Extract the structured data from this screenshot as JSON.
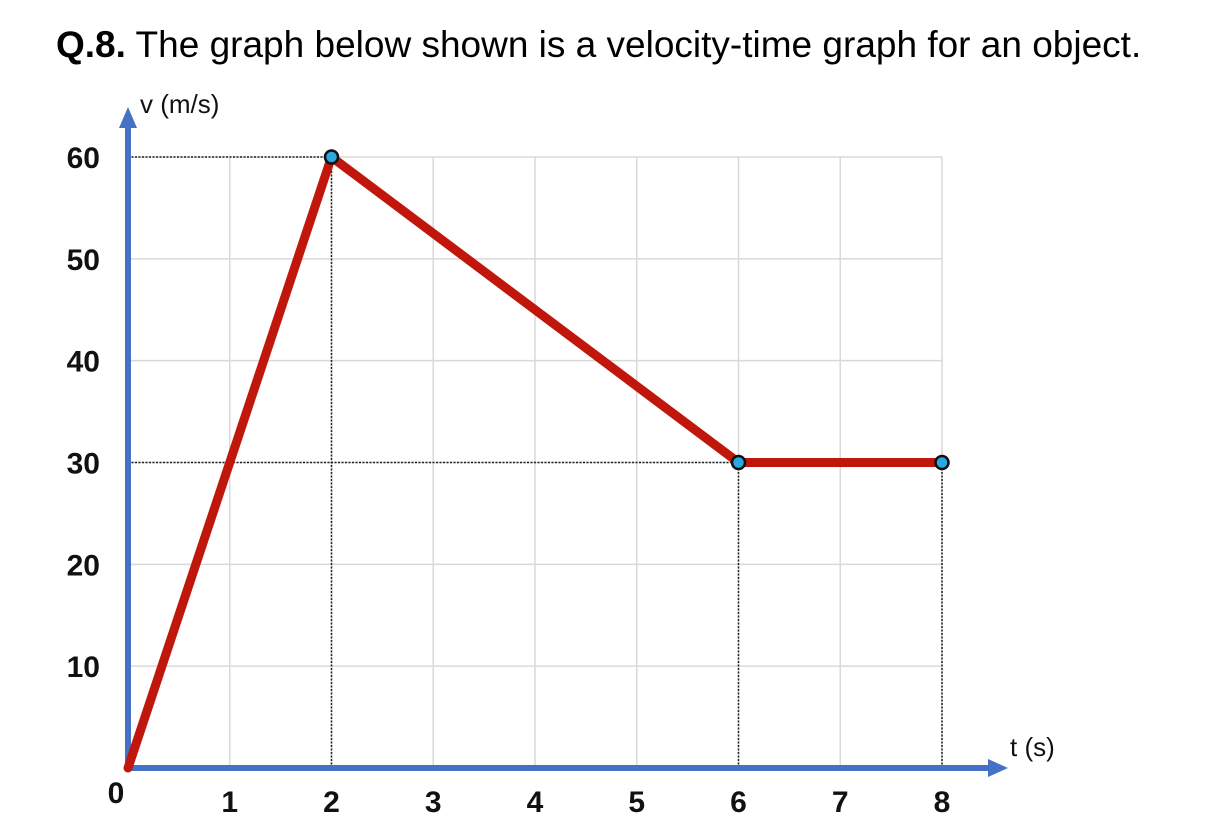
{
  "question": {
    "number": "Q.8.",
    "text": "The graph below shown is a velocity-time graph for an object."
  },
  "chart_data": {
    "type": "line",
    "title": "",
    "xlabel": "t (s)",
    "ylabel": "v (m/s)",
    "xlim": [
      0,
      8
    ],
    "ylim": [
      0,
      60
    ],
    "x_ticks": [
      "1",
      "2",
      "3",
      "4",
      "5",
      "6",
      "7",
      "8"
    ],
    "y_ticks": [
      "60",
      "50",
      "40",
      "30",
      "20",
      "10"
    ],
    "origin_label": "0",
    "grid": true,
    "series": [
      {
        "points": [
          [
            0,
            0
          ],
          [
            2,
            60
          ],
          [
            6,
            30
          ],
          [
            8,
            30
          ]
        ],
        "color": "#c0160c"
      }
    ],
    "marked_points": [
      [
        2,
        60
      ],
      [
        6,
        30
      ],
      [
        8,
        30
      ]
    ],
    "guide_lines": [
      {
        "axis": "horizontal",
        "value": 60,
        "to_x": 2
      },
      {
        "axis": "horizontal",
        "value": 30,
        "to_x": 6
      },
      {
        "axis": "vertical",
        "value": 2,
        "to_y": 60
      },
      {
        "axis": "vertical",
        "value": 6,
        "to_y": 30
      },
      {
        "axis": "vertical",
        "value": 8,
        "to_y": 30
      }
    ],
    "colors": {
      "axis": "#4472c4",
      "line": "#c0160c",
      "marker_fill": "#29a9e0",
      "grid": "#d9d9d9",
      "guide": "#222222"
    }
  }
}
